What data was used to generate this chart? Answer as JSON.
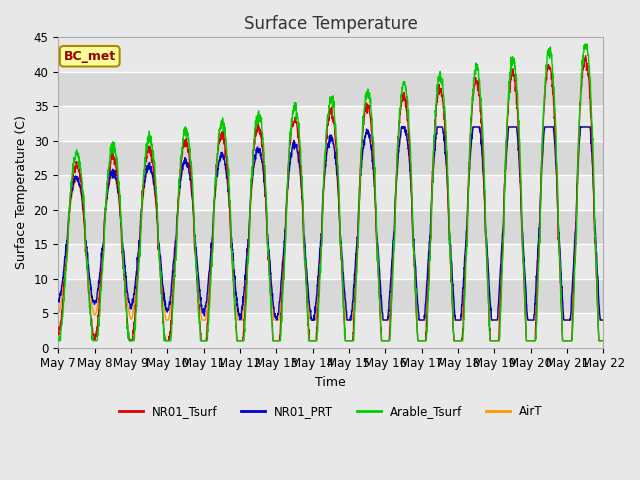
{
  "title": "Surface Temperature",
  "xlabel": "Time",
  "ylabel": "Surface Temperature (C)",
  "ylim": [
    0,
    45
  ],
  "bg_color": "#e8e8e8",
  "plot_bg_color": "#eeeeee",
  "annotation_text": "BC_met",
  "annotation_bg": "#ffff99",
  "annotation_border": "#aa8800",
  "annotation_text_color": "#990000",
  "legend_entries": [
    "NR01_Tsurf",
    "NR01_PRT",
    "Arable_Tsurf",
    "AirT"
  ],
  "line_colors": [
    "#dd0000",
    "#0000cc",
    "#00cc00",
    "#ff9900"
  ],
  "tick_labels": [
    "May 7",
    "May 8",
    "May 9",
    "May 10",
    "May 11",
    "May 12",
    "May 13",
    "May 14",
    "May 15",
    "May 16",
    "May 17",
    "May 18",
    "May 19",
    "May 20",
    "May 21",
    "May 22"
  ],
  "n_days": 15,
  "yticks": [
    0,
    5,
    10,
    15,
    20,
    25,
    30,
    35,
    40,
    45
  ]
}
